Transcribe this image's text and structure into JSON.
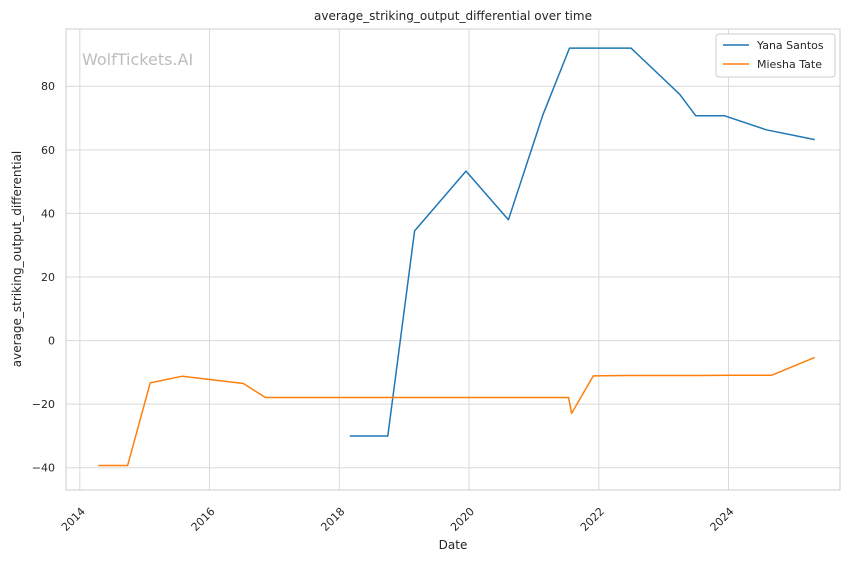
{
  "chart_data": {
    "type": "line",
    "title": "average_striking_output_differential over time",
    "xlabel": "Date",
    "ylabel": "average_striking_output_differential",
    "watermark": "WolfTickets.AI",
    "x_ticks": [
      "2014",
      "2016",
      "2018",
      "2020",
      "2022",
      "2024"
    ],
    "y_ticks": [
      "−40",
      "−20",
      "0",
      "20",
      "40",
      "60",
      "80"
    ],
    "xlim": [
      "2013-10-15",
      "2025-09-20"
    ],
    "ylim": [
      -47,
      98
    ],
    "grid": true,
    "legend_position": "top-right",
    "colors": {
      "Yana Santos": "#1f77b4",
      "Miesha Tate": "#ff7f0e"
    },
    "series": [
      {
        "name": "Yana Santos",
        "points": [
          [
            "2018-03-01",
            -30
          ],
          [
            "2018-10-01",
            -30
          ],
          [
            "2019-03-01",
            34.5
          ],
          [
            "2019-12-15",
            53.3
          ],
          [
            "2020-08-10",
            38
          ],
          [
            "2021-02-20",
            71
          ],
          [
            "2021-07-20",
            92
          ],
          [
            "2022-07-01",
            92
          ],
          [
            "2023-04-01",
            77.5
          ],
          [
            "2023-07-01",
            70.7
          ],
          [
            "2023-12-10",
            70.7
          ],
          [
            "2024-08-01",
            66.3
          ],
          [
            "2025-05-01",
            63.2
          ]
        ]
      },
      {
        "name": "Miesha Tate",
        "points": [
          [
            "2014-04-15",
            -39.3
          ],
          [
            "2014-09-27",
            -39.3
          ],
          [
            "2015-02-01",
            -13.3
          ],
          [
            "2015-08-01",
            -11.2
          ],
          [
            "2016-07-10",
            -13.5
          ],
          [
            "2016-11-10",
            -17.9
          ],
          [
            "2021-07-15",
            -17.9
          ],
          [
            "2021-08-01",
            -22.9
          ],
          [
            "2021-12-01",
            -11.1
          ],
          [
            "2022-06-01",
            -11
          ],
          [
            "2023-08-01",
            -11
          ],
          [
            "2024-01-01",
            -10.9
          ],
          [
            "2024-09-01",
            -10.9
          ],
          [
            "2025-05-01",
            -5.3
          ]
        ]
      }
    ]
  }
}
